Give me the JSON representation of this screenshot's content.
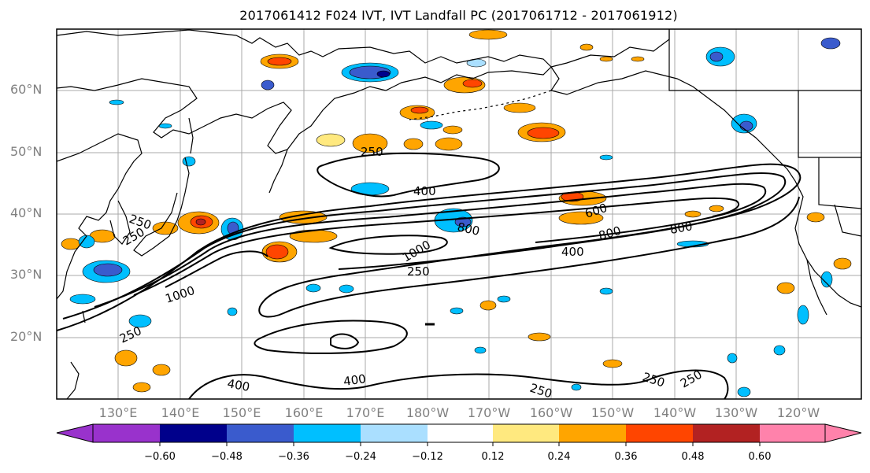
{
  "title": "2017061412 F024 IVT, IVT Landfall PC (2017061712 - 2017061912)",
  "lat_labels": [
    "60°N",
    "50°N",
    "40°N",
    "30°N",
    "20°N"
  ],
  "lon_labels": [
    "130°E",
    "140°E",
    "150°E",
    "160°E",
    "170°E",
    "180°W",
    "170°W",
    "160°W",
    "150°W",
    "140°W",
    "130°W",
    "120°W"
  ],
  "contour_labels": [
    "250",
    "400",
    "250",
    "600",
    "800",
    "800",
    "250",
    "1000",
    "400",
    "800",
    "250",
    "1000",
    "250",
    "400",
    "400",
    "250",
    "250",
    "250"
  ],
  "colorbar": {
    "colors": [
      "#9932cc",
      "#00008b",
      "#3a5bcd",
      "#00bfff",
      "#aadfff",
      "#ffffff",
      "#ffe97f",
      "#ffa500",
      "#ff4500",
      "#b22222",
      "#ff82ab"
    ],
    "tick_labels": [
      "−0.60",
      "−0.48",
      "−0.36",
      "−0.24",
      "−0.12",
      "0.12",
      "0.24",
      "0.36",
      "0.48",
      "0.60"
    ]
  }
}
